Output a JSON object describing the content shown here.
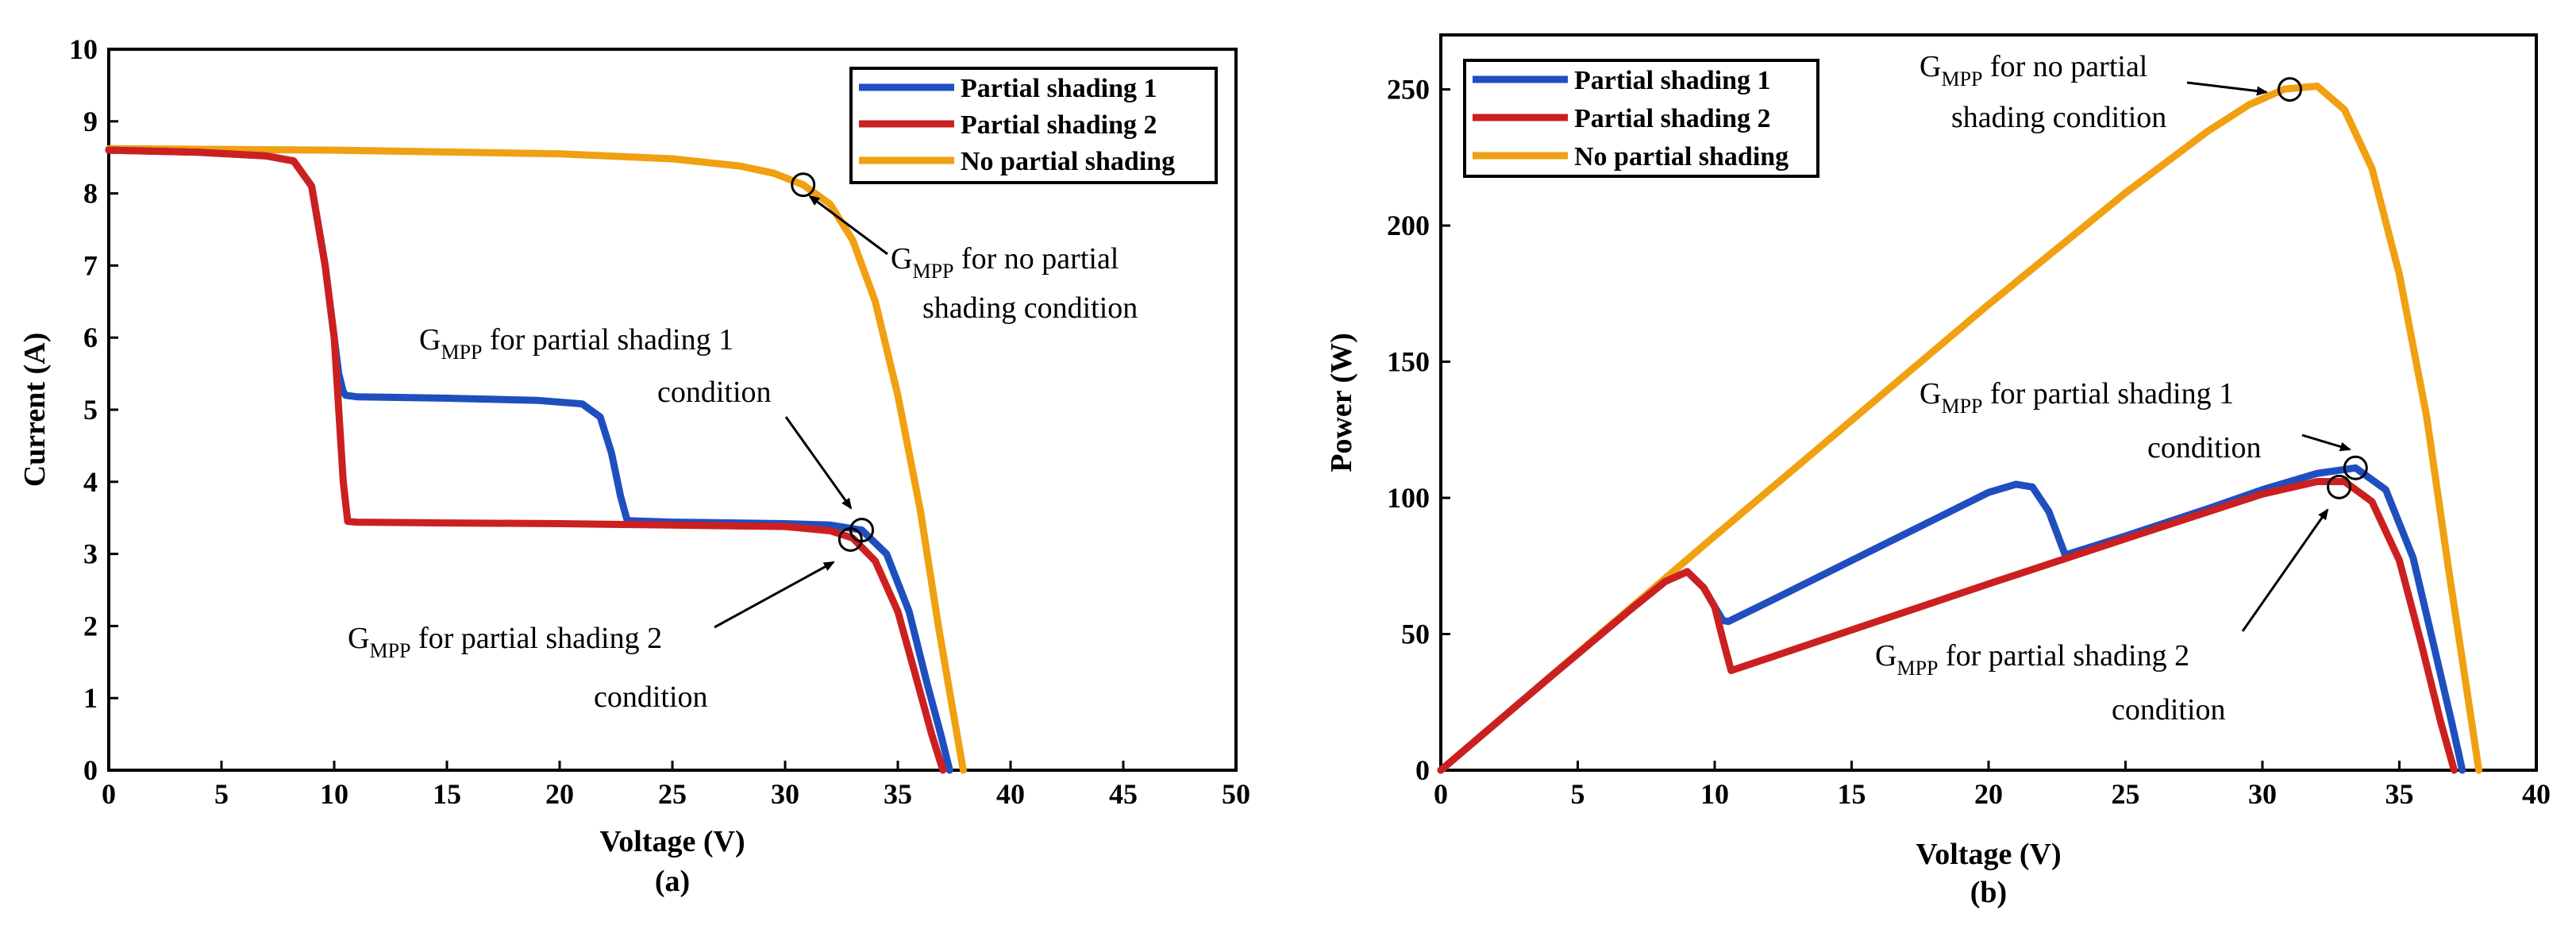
{
  "chart_data": [
    {
      "type": "line",
      "id": "iv",
      "xlabel": "Voltage (V)",
      "ylabel": "Current (A)",
      "caption": "(a)",
      "xlim": [
        0,
        50
      ],
      "ylim": [
        0,
        10
      ],
      "xticks": [
        0,
        5,
        10,
        15,
        20,
        25,
        30,
        35,
        40,
        45,
        50
      ],
      "yticks": [
        0,
        1,
        2,
        3,
        4,
        5,
        6,
        7,
        8,
        9,
        10
      ],
      "legend": {
        "position": "top-right",
        "entries": [
          "Partial shading 1",
          "Partial shading 2",
          "No partial shading"
        ]
      },
      "series": [
        {
          "name": "Partial shading 1",
          "color": "#1f4fbf",
          "x": [
            0,
            4,
            7,
            8.2,
            9,
            9.6,
            10,
            10.2,
            10.4,
            10.5,
            11,
            15,
            19,
            21,
            21.8,
            22.3,
            22.7,
            23,
            25,
            30,
            32,
            33.4,
            34.5,
            35.5,
            36.3,
            36.9,
            37.3
          ],
          "y": [
            8.6,
            8.57,
            8.52,
            8.45,
            8.1,
            7.0,
            6.0,
            5.5,
            5.25,
            5.2,
            5.18,
            5.16,
            5.13,
            5.08,
            4.9,
            4.4,
            3.8,
            3.46,
            3.44,
            3.42,
            3.4,
            3.33,
            3.0,
            2.2,
            1.2,
            0.5,
            0
          ]
        },
        {
          "name": "Partial shading 2",
          "color": "#cc2020",
          "x": [
            0,
            4,
            7,
            8.2,
            9,
            9.6,
            10,
            10.2,
            10.4,
            10.6,
            11,
            15,
            20,
            25,
            30,
            32,
            33,
            34,
            35,
            35.8,
            36.5,
            37
          ],
          "y": [
            8.6,
            8.57,
            8.52,
            8.45,
            8.1,
            7.0,
            6.0,
            5.0,
            4.0,
            3.45,
            3.44,
            3.43,
            3.42,
            3.4,
            3.38,
            3.32,
            3.22,
            2.9,
            2.2,
            1.3,
            0.5,
            0
          ]
        },
        {
          "name": "No partial shading",
          "color": "#f0a010",
          "x": [
            0,
            10,
            20,
            25,
            28,
            29.5,
            30.8,
            32,
            33,
            34,
            35,
            36,
            36.8,
            37.4,
            37.9
          ],
          "y": [
            8.62,
            8.6,
            8.55,
            8.48,
            8.38,
            8.28,
            8.12,
            7.85,
            7.35,
            6.5,
            5.2,
            3.6,
            2.0,
            0.9,
            0
          ]
        }
      ],
      "mpp_markers": [
        {
          "x": 30.8,
          "y": 8.12
        },
        {
          "x": 33.4,
          "y": 3.33
        },
        {
          "x": 32.9,
          "y": 3.2
        }
      ],
      "annotations": [
        {
          "main": "G",
          "sub": "MPP",
          "rest": " for no partial",
          "line2": "shading condition"
        },
        {
          "main": "G",
          "sub": "MPP",
          "rest": " for partial shading 1",
          "line2": "condition"
        },
        {
          "main": "G",
          "sub": "MPP",
          "rest": " for partial shading 2",
          "line2": "condition"
        }
      ]
    },
    {
      "type": "line",
      "id": "pv",
      "xlabel": "Voltage (V)",
      "ylabel": "Power (W)",
      "caption": "(b)",
      "xlim": [
        0,
        40
      ],
      "ylim": [
        0,
        270
      ],
      "xticks": [
        0,
        5,
        10,
        15,
        20,
        25,
        30,
        35,
        40
      ],
      "yticks": [
        0,
        50,
        100,
        150,
        200,
        250
      ],
      "legend": {
        "position": "top-left",
        "entries": [
          "Partial shading 1",
          "Partial shading 2",
          "No partial shading"
        ]
      },
      "series": [
        {
          "name": "Partial shading 1",
          "color": "#1f4fbf",
          "x": [
            0,
            4,
            7,
            8.2,
            9,
            9.6,
            10,
            10.3,
            10.5,
            12,
            15,
            18,
            20,
            21,
            21.6,
            22.2,
            22.8,
            25,
            28,
            30,
            32,
            33.4,
            34.5,
            35.5,
            36.3,
            36.9,
            37.3
          ],
          "y": [
            0,
            34.3,
            59.6,
            69.3,
            72.9,
            67,
            60,
            55,
            54.6,
            62,
            77,
            92,
            102,
            105,
            104,
            95,
            79,
            86,
            96,
            103,
            109,
            111,
            103,
            78,
            44,
            18,
            0
          ]
        },
        {
          "name": "Partial shading 2",
          "color": "#cc2020",
          "x": [
            0,
            4,
            7,
            8.2,
            9,
            9.6,
            10,
            10.3,
            10.6,
            12,
            15,
            20,
            25,
            30,
            32,
            33,
            34,
            35,
            35.8,
            36.5,
            37
          ],
          "y": [
            0,
            34.3,
            59.6,
            69.3,
            72.9,
            67,
            60,
            48,
            36.6,
            41.3,
            51.5,
            68.4,
            85,
            101.4,
            106,
            106,
            98.6,
            77,
            46.5,
            18,
            0
          ]
        },
        {
          "name": "No partial shading",
          "color": "#f0a010",
          "x": [
            0,
            10,
            20,
            25,
            28,
            29.5,
            30.8,
            32,
            33,
            34,
            35,
            36,
            36.8,
            37.4,
            37.9
          ],
          "y": [
            0,
            86,
            171,
            212,
            234.6,
            244.3,
            250.1,
            251.2,
            242.5,
            221,
            182,
            129.6,
            73.6,
            33.7,
            0
          ]
        }
      ],
      "mpp_markers": [
        {
          "x": 31,
          "y": 250
        },
        {
          "x": 33.4,
          "y": 111
        },
        {
          "x": 32.8,
          "y": 104
        }
      ],
      "annotations": [
        {
          "main": "G",
          "sub": "MPP",
          "rest": " for no partial",
          "line2": "shading condition"
        },
        {
          "main": "G",
          "sub": "MPP",
          "rest": " for partial shading 1",
          "line2": "condition"
        },
        {
          "main": "G",
          "sub": "MPP",
          "rest": " for partial shading 2",
          "line2": "condition"
        }
      ]
    }
  ]
}
